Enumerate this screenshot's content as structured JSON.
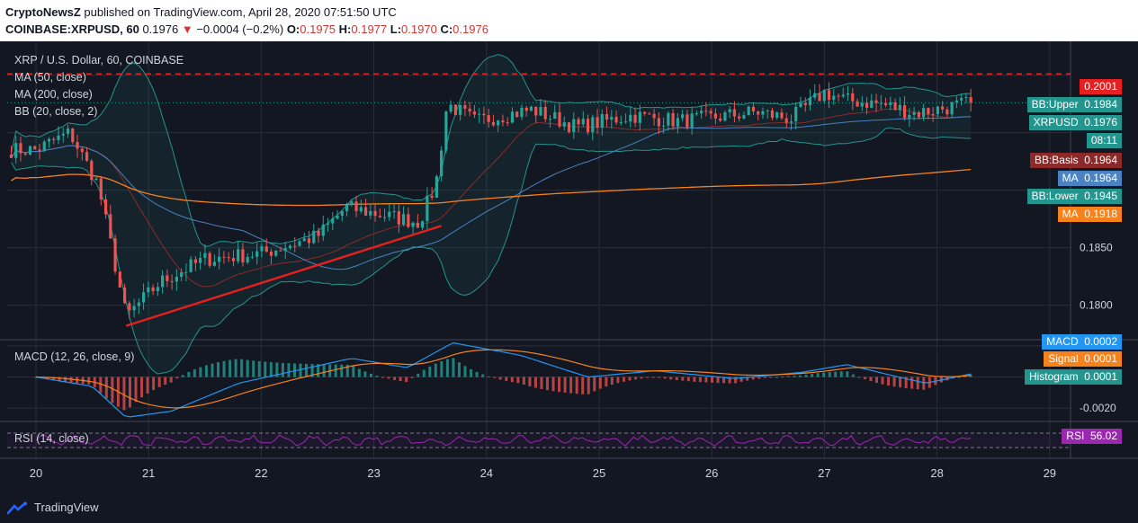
{
  "header": {
    "publisher": "CryptoNewsZ",
    "published_text": " published on TradingView.com, April 28, 2020 07:51:50 UTC",
    "symbol": "COINBASE:XRPUSD, 60",
    "last": "0.1976",
    "arrow": "▼",
    "change": "−0.0004 (−0.2%)",
    "o_label": "O:",
    "o_value": "0.1975",
    "h_label": "H:",
    "h_value": "0.1977",
    "l_label": "L:",
    "l_value": "0.1970",
    "c_label": "C:",
    "c_value": "0.1976"
  },
  "legend": {
    "title": "XRP / U.S. Dollar, 60, COINBASE",
    "ma50": "MA (50, close)",
    "ma200": "MA (200, close)",
    "bb": "BB (20, close, 2)",
    "macd": "MACD (12, 26, close, 9)",
    "rsi": "RSI (14, close)"
  },
  "price_labels": [
    {
      "label": "",
      "value": "0.2001",
      "price": 0.2001,
      "color": "#e91e1e"
    },
    {
      "label": "BB:Upper",
      "value": "0.1984",
      "price": 0.1984,
      "color": "#22968e"
    },
    {
      "label": "XRPUSD",
      "value": "0.1976",
      "price": 0.1976,
      "color": "#22968e"
    },
    {
      "label": "",
      "value": "08:11",
      "price": 0.1968,
      "color": "#22968e"
    },
    {
      "label": "BB:Basis",
      "value": "0.1964",
      "price": 0.1964,
      "color": "#8c2a2a"
    },
    {
      "label": "MA",
      "value": "0.1964",
      "price": 0.1964,
      "color": "#4b83c2"
    },
    {
      "label": "BB:Lower",
      "value": "0.1945",
      "price": 0.1945,
      "color": "#22968e"
    },
    {
      "label": "MA",
      "value": "0.1918",
      "price": 0.1918,
      "color": "#f7821b"
    }
  ],
  "macd_labels": [
    {
      "label": "MACD",
      "value": "0.0002",
      "color": "#2196f3"
    },
    {
      "label": "Signal",
      "value": "0.0001",
      "color": "#f7821b"
    },
    {
      "label": "Histogram",
      "value": "0.0001",
      "color": "#22968e"
    }
  ],
  "rsi_label": {
    "label": "RSI",
    "value": "56.02",
    "color": "#9c27b0"
  },
  "footer": {
    "brand": "TradingView"
  },
  "colors": {
    "background": "#131722",
    "grid": "#2a2e39",
    "up": "#26a69a",
    "down": "#ef5350",
    "ma50": "#4b83c2",
    "ma200": "#f7821b",
    "bb": "#22968e",
    "trendline": "#e91e1e",
    "rsi": "#9c27b0"
  },
  "chart_data": [
    {
      "type": "candlestick",
      "title": "XRP / U.S. Dollar, 60, COINBASE",
      "x_ticks": [
        "20",
        "21",
        "22",
        "23",
        "24",
        "25",
        "26",
        "27",
        "28",
        "29"
      ],
      "y_ticks": [
        "0.1800",
        "0.1850"
      ],
      "ylim": [
        0.177,
        0.202
      ],
      "resistance_level": 0.2001,
      "last_price": 0.1976,
      "ma50_last": 0.1964,
      "ma200_last": 0.1918,
      "bb_upper_last": 0.1984,
      "bb_basis_last": 0.1964,
      "bb_lower_last": 0.1945,
      "trendline": {
        "from": {
          "x": 20.8,
          "y": 0.1782
        },
        "to": {
          "x": 23.6,
          "y": 0.1869
        }
      },
      "close_anchors": [
        {
          "x": 20.0,
          "y": 0.1935
        },
        {
          "x": 20.3,
          "y": 0.195
        },
        {
          "x": 20.55,
          "y": 0.1905
        },
        {
          "x": 20.8,
          "y": 0.179
        },
        {
          "x": 21.1,
          "y": 0.182
        },
        {
          "x": 21.5,
          "y": 0.184
        },
        {
          "x": 22.0,
          "y": 0.1845
        },
        {
          "x": 22.5,
          "y": 0.186
        },
        {
          "x": 22.75,
          "y": 0.1885
        },
        {
          "x": 23.0,
          "y": 0.188
        },
        {
          "x": 23.4,
          "y": 0.1872
        },
        {
          "x": 23.55,
          "y": 0.1905
        },
        {
          "x": 23.65,
          "y": 0.1975
        },
        {
          "x": 23.9,
          "y": 0.196
        },
        {
          "x": 24.4,
          "y": 0.197
        },
        {
          "x": 24.8,
          "y": 0.1955
        },
        {
          "x": 25.3,
          "y": 0.1965
        },
        {
          "x": 25.7,
          "y": 0.196
        },
        {
          "x": 26.0,
          "y": 0.1963
        },
        {
          "x": 26.4,
          "y": 0.1968
        },
        {
          "x": 26.7,
          "y": 0.1962
        },
        {
          "x": 27.0,
          "y": 0.1985
        },
        {
          "x": 27.2,
          "y": 0.1978
        },
        {
          "x": 27.5,
          "y": 0.1975
        },
        {
          "x": 27.8,
          "y": 0.1967
        },
        {
          "x": 28.1,
          "y": 0.1972
        },
        {
          "x": 28.3,
          "y": 0.1976
        }
      ]
    },
    {
      "type": "line",
      "title": "MACD (12, 26, close, 9)",
      "y_ticks": [
        "-0.0020"
      ],
      "ylim": [
        -0.0028,
        0.0024
      ],
      "series": [
        {
          "name": "MACD",
          "last": 0.0002
        },
        {
          "name": "Signal",
          "last": 0.0001
        },
        {
          "name": "Histogram",
          "last": 0.0001
        }
      ],
      "macd_anchors": [
        {
          "x": 20.0,
          "y": 0.0
        },
        {
          "x": 20.5,
          "y": -0.0006
        },
        {
          "x": 20.8,
          "y": -0.0026
        },
        {
          "x": 21.2,
          "y": -0.0022
        },
        {
          "x": 21.8,
          "y": -0.0004
        },
        {
          "x": 22.3,
          "y": 0.0004
        },
        {
          "x": 22.8,
          "y": 0.0012
        },
        {
          "x": 23.3,
          "y": 0.0006
        },
        {
          "x": 23.7,
          "y": 0.0022
        },
        {
          "x": 24.3,
          "y": 0.0014
        },
        {
          "x": 24.9,
          "y": 0.0
        },
        {
          "x": 25.5,
          "y": 0.0004
        },
        {
          "x": 26.2,
          "y": -0.0001
        },
        {
          "x": 26.8,
          "y": 0.0003
        },
        {
          "x": 27.2,
          "y": 0.0008
        },
        {
          "x": 27.6,
          "y": 0.0001
        },
        {
          "x": 27.9,
          "y": -0.0004
        },
        {
          "x": 28.3,
          "y": 0.0002
        }
      ]
    },
    {
      "type": "line",
      "title": "RSI (14, close)",
      "ylim": [
        0,
        100
      ],
      "band": [
        30,
        70
      ],
      "series": [
        {
          "name": "RSI",
          "last": 56.02
        }
      ]
    }
  ]
}
